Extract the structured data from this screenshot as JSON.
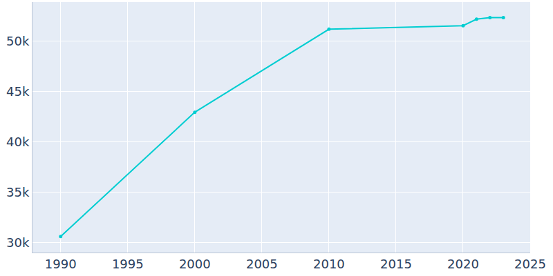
{
  "chart_data": {
    "type": "line",
    "x": [
      1990,
      2000,
      2010,
      2020,
      2021,
      2022,
      2023
    ],
    "values": [
      30600,
      42950,
      51200,
      51550,
      52200,
      52350,
      52350
    ],
    "color": "#00cdd1",
    "marker": "circle",
    "xlim": [
      1987.9,
      2025
    ],
    "xticks": [
      1990,
      1995,
      2000,
      2005,
      2010,
      2015,
      2020,
      2025
    ],
    "ylim": [
      29000,
      53900
    ],
    "yticks": [
      {
        "value": 30000,
        "label": "30k"
      },
      {
        "value": 35000,
        "label": "35k"
      },
      {
        "value": 40000,
        "label": "40k"
      },
      {
        "value": 45000,
        "label": "45k"
      },
      {
        "value": 50000,
        "label": "50k"
      }
    ],
    "grid": true
  }
}
